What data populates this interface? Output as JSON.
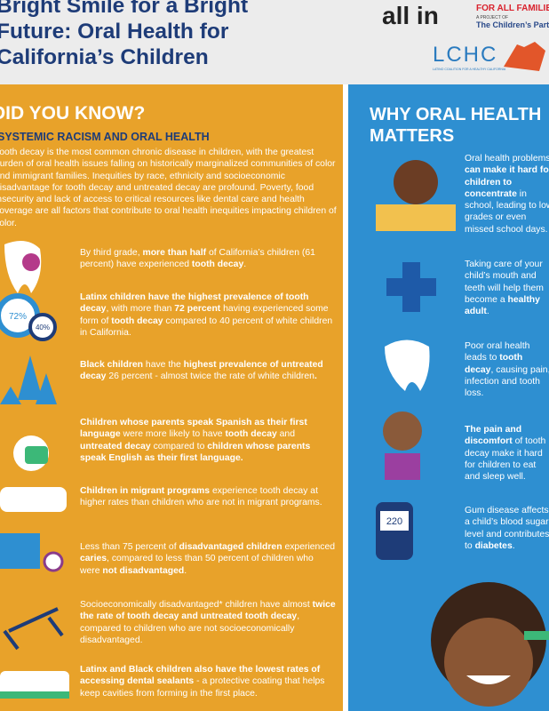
{
  "header": {
    "title": "Bright Smile for a Bright Future: Oral Health for California’s Children",
    "logo_allin": "all in",
    "logo_allin_tag": "FOR ALL FAMILIES",
    "logo_project": "A PROJECT OF",
    "logo_partner": "The Children’s Partnership",
    "logo_lchc": "LCHC",
    "logo_lchc_tag": "LATINO COALITION FOR A HEALTHY CALIFORNIA"
  },
  "left": {
    "heading": "DID YOU KNOW?",
    "subheading": "SYSTEMIC RACISM AND ORAL HEALTH",
    "intro": "Tooth decay is the most common chronic disease in children, with the greatest burden of oral health issues falling on historically marginalized communities of color and immigrant families. Inequities by race, ethnicity and socioeconomic disadvantage for tooth decay and untreated decay are profound. Poverty, food insecurity and lack of access to critical resources like dental care and health coverage are all factors that contribute to oral health inequities impacting children of color.",
    "icon_labels": [
      "72%",
      "40%"
    ],
    "facts": [
      [
        "By third grade, ",
        {
          "strong": "more than half"
        },
        " of California’s children (61 percent) have experienced ",
        {
          "strong": "tooth decay"
        },
        "."
      ],
      [
        {
          "strong": "Latinx children have the highest prevalence of tooth decay"
        },
        ", with more than ",
        {
          "strong": "72 percent"
        },
        " having experienced some form of ",
        {
          "strong": "tooth decay"
        },
        " compared to 40 percent of white children in California."
      ],
      [
        {
          "strong": "Black children"
        },
        " have the ",
        {
          "strong": "highest prevalence of untreated decay"
        },
        " 26 percent - almost twice the rate of white children",
        {
          "strong": "."
        }
      ],
      [
        {
          "strong": "Children whose parents speak Spanish as their first language"
        },
        " were more likely to have ",
        {
          "strong": "tooth decay"
        },
        " and ",
        {
          "strong": "untreated decay"
        },
        " compared to ",
        {
          "strong": "children whose parents speak English as their first language."
        }
      ],
      [
        {
          "strong": "Children in migrant programs"
        },
        " experience tooth decay at higher rates than children who are not in migrant programs."
      ],
      [
        "Less than 75 percent of ",
        {
          "strong": "disadvantaged children"
        },
        " experienced ",
        {
          "strong": "caries"
        },
        ", compared to less than 50 percent of children who were ",
        {
          "strong": "not disadvantaged"
        },
        "."
      ],
      [
        "Socioeconomically disadvantaged* children have almost ",
        {
          "strong": "twice the rate of tooth decay and untreated tooth decay"
        },
        ", compared to children who are not socioeconomically disadvantaged."
      ],
      [
        {
          "strong": "Latinx and Black children also have the lowest rates of accessing dental sealants"
        },
        " - a protective coating that helps keep cavities from forming in the first place."
      ]
    ]
  },
  "right": {
    "heading": "WHY ORAL HEALTH MATTERS",
    "meter_label": "220",
    "items": [
      [
        "Oral health problems ",
        {
          "strong": "can make it hard for children to concentrate"
        },
        " in school, leading to low grades or even missed school days."
      ],
      [
        "Taking care of your child’s mouth and teeth will help them become a ",
        {
          "strong": "healthy adult"
        },
        "."
      ],
      [
        "Poor oral health leads to ",
        {
          "strong": "tooth decay"
        },
        ", causing pain, infection and tooth loss."
      ],
      [
        {
          "strong": "The pain and discomfort"
        },
        " of tooth decay make it hard for children to eat and sleep well."
      ],
      [
        "Gum disease affects a child’s blood sugar level and contributes to ",
        {
          "strong": "diabetes"
        },
        "."
      ]
    ]
  }
}
